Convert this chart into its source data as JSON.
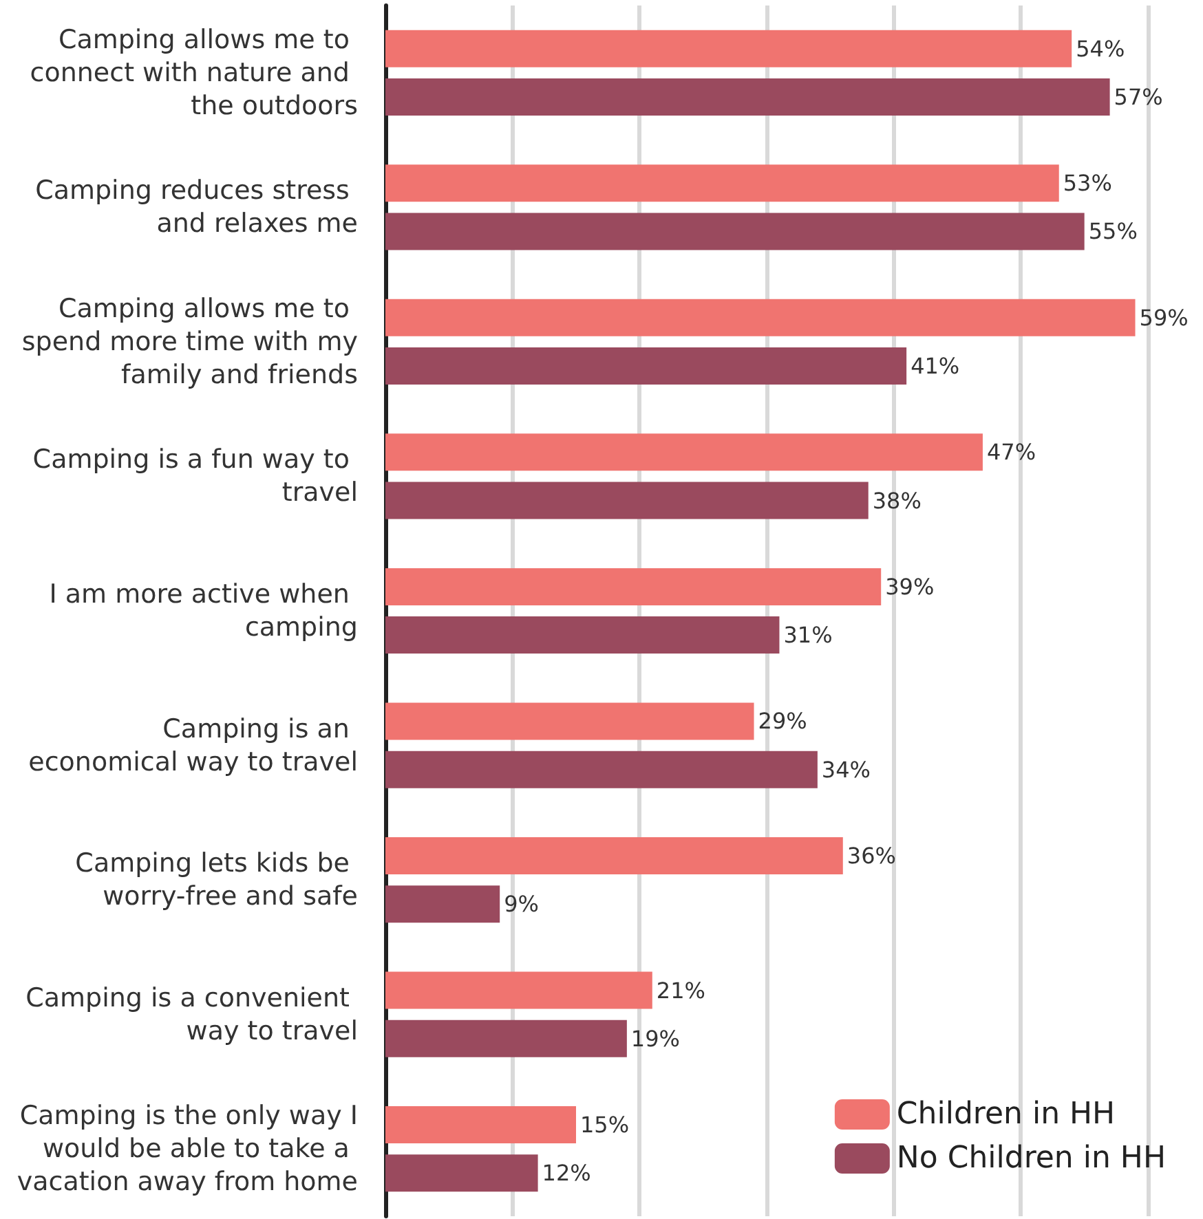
{
  "chart_data": {
    "type": "bar",
    "orientation": "horizontal",
    "categories": [
      "Camping allows me to connect with nature and the outdoors",
      "Camping reduces stress and relaxes me",
      "Camping allows me to spend more time with my family and friends",
      "Camping is a fun way to travel",
      "I am more active when camping",
      "Camping is an economical way to travel",
      "Camping lets kids be worry-free and safe",
      "Camping is a convenient way to travel",
      "Camping is the only way I would be able to take a vacation away from home"
    ],
    "series": [
      {
        "name": "Children in HH",
        "color": "#f07470",
        "values": [
          54,
          53,
          59,
          47,
          39,
          29,
          36,
          21,
          15
        ],
        "value_labels": [
          "54%",
          "53%",
          "59%",
          "47%",
          "39%",
          "29%",
          "36%",
          "21%",
          "15%"
        ]
      },
      {
        "name": "No Children in HH",
        "color": "#9a4a5e",
        "values": [
          57,
          55,
          41,
          38,
          31,
          34,
          9,
          19,
          12
        ],
        "value_labels": [
          "57%",
          "55%",
          "41%",
          "38%",
          "31%",
          "34%",
          "9%",
          "19%",
          "12%"
        ]
      }
    ],
    "xticks": [
      {
        "value": 10,
        "label": null
      },
      {
        "value": 20,
        "label": null
      },
      {
        "value": 30,
        "label": null
      },
      {
        "value": 40,
        "label": null
      },
      {
        "value": 50,
        "label": null
      },
      {
        "value": 60,
        "label": null
      }
    ],
    "grid": "x",
    "tick_labels": "y",
    "legend": "bottom right"
  }
}
